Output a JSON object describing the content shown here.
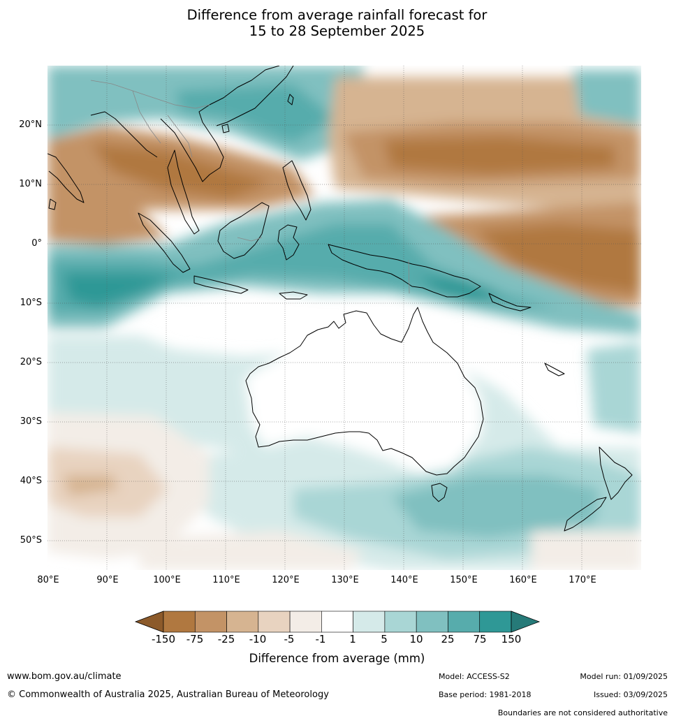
{
  "title": {
    "line1": "Difference from average rainfall forecast for",
    "line2": "15 to 28 September 2025"
  },
  "map": {
    "lat_labels": [
      "20°N",
      "10°N",
      "0°",
      "10°S",
      "20°S",
      "30°S",
      "40°S",
      "50°S"
    ],
    "lon_labels": [
      "80°E",
      "90°E",
      "100°E",
      "110°E",
      "120°E",
      "130°E",
      "140°E",
      "150°E",
      "160°E",
      "170°E"
    ],
    "extent": {
      "lon_min": 80,
      "lon_max": 180,
      "lat_min": -55,
      "lat_max": 30
    }
  },
  "legend": {
    "ticks": [
      "-150",
      "-75",
      "-25",
      "-10",
      "-5",
      "-1",
      "1",
      "5",
      "10",
      "25",
      "75",
      "150"
    ],
    "colors": [
      "#8c5a2a",
      "#b07840",
      "#c39366",
      "#d6b491",
      "#e8d3c0",
      "#f3ede7",
      "#ffffff",
      "#d5eae9",
      "#a9d6d5",
      "#80c0c0",
      "#57acac",
      "#2f9896",
      "#267a78"
    ],
    "label": "Difference from average (mm)"
  },
  "footer": {
    "website": "www.bom.gov.au/climate",
    "copyright": "© Commonwealth of Australia 2025, Australian Bureau of Meteorology",
    "model": "Model: ACCESS-S2",
    "base_period": "Base period: 1981-2018",
    "model_run": "Model run: 01/09/2025",
    "issued": "Issued: 03/09/2025",
    "disclaimer": "Boundaries are not considered authoritative"
  }
}
